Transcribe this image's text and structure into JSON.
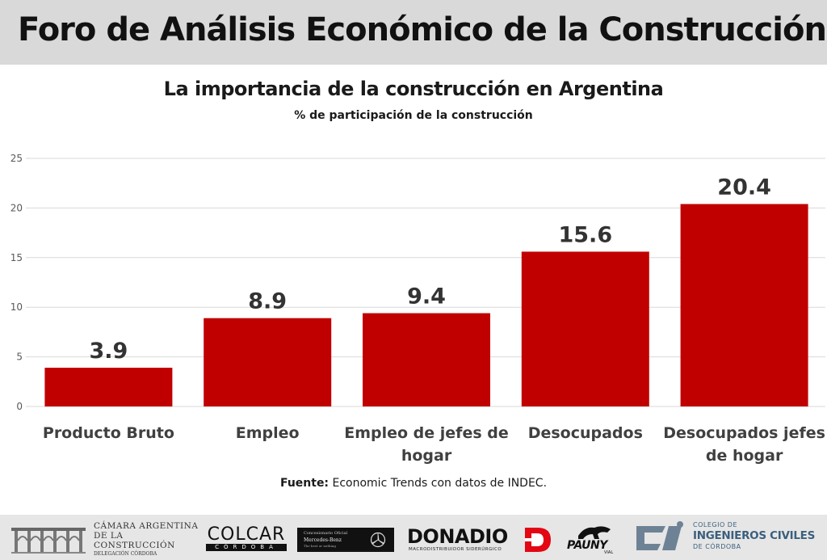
{
  "header": {
    "title": "Foro de Análisis Económico de la Construcción"
  },
  "chart_data": {
    "type": "bar",
    "title": "La importancia de la construcción en Argentina",
    "subtitle": "% de participación de la construcción",
    "categories": [
      "Producto Bruto",
      "Empleo",
      "Empleo de jefes de hogar",
      "Desocupados",
      "Desocupados jefes de hogar"
    ],
    "category_lines": [
      [
        "Producto Bruto"
      ],
      [
        "Empleo"
      ],
      [
        "Empleo de jefes de",
        "hogar"
      ],
      [
        "Desocupados"
      ],
      [
        "Desocupados jefes",
        "de hogar"
      ]
    ],
    "values": [
      3.9,
      8.9,
      9.4,
      15.6,
      20.4
    ],
    "value_labels": [
      "3.9",
      "8.9",
      "9.4",
      "15.6",
      "20.4"
    ],
    "ylim": [
      0,
      25
    ],
    "yticks": [
      0,
      5,
      10,
      15,
      20,
      25
    ],
    "grid": true,
    "bar_color": "#c00000",
    "xlabel": "",
    "ylabel": ""
  },
  "source": {
    "label": "Fuente:",
    "text": " Economic Trends con datos de INDEC."
  },
  "footer": {
    "camara": {
      "line1": "CÁMARA ARGENTINA",
      "line2": "DE LA CONSTRUCCIÓN",
      "line3": "DELEGACIÓN CÓRDOBA"
    },
    "colcar": {
      "name": "COLCAR",
      "city": "CÓRDOBA"
    },
    "mercedes": {
      "line1": "Concesionario Oficial",
      "line2": "Mercedes-Benz",
      "line3": "The best or nothing"
    },
    "donadio": {
      "name": "DONADIO",
      "sub": "MACRODISTRIBUIDOR SIDERÚRGICO"
    },
    "pauny": {
      "name": "PAUNY",
      "sub": "VIAL"
    },
    "colegio": {
      "line1": "COLEGIO DE",
      "line2": "INGENIEROS CIVILES",
      "line3": "DE CÓRDOBA"
    }
  },
  "colors": {
    "header_bg": "#d9d9d9",
    "footer_bg": "#e6e6e6",
    "bar": "#c00000",
    "grid": "#d9d9d9",
    "logo_blue": "#3b5f7d"
  }
}
